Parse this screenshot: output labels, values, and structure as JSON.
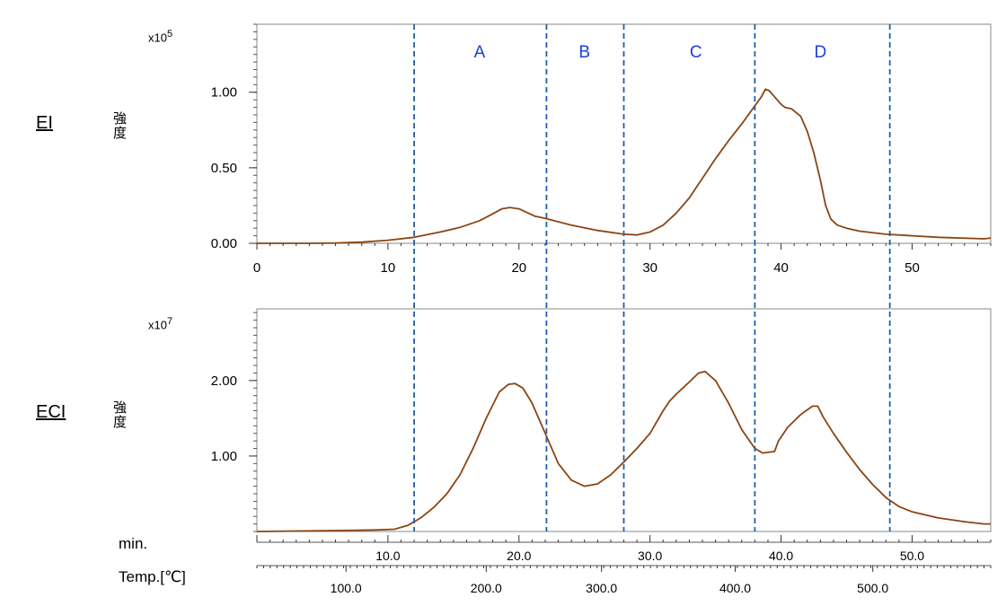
{
  "chart_data": [
    {
      "type": "line",
      "name_label": "EI",
      "ylabel": "強度",
      "scale_base": "x10",
      "scale_exp": "5",
      "xlim": [
        0,
        56
      ],
      "ylim": [
        0,
        1.45
      ],
      "yticks": [
        {
          "v": 0.0,
          "label": "0.00"
        },
        {
          "v": 0.5,
          "label": "0.50"
        },
        {
          "v": 1.0,
          "label": "1.00"
        }
      ],
      "xticks": [
        {
          "v": 0,
          "label": "0"
        },
        {
          "v": 10,
          "label": "10"
        },
        {
          "v": 20,
          "label": "20"
        },
        {
          "v": 30,
          "label": "30"
        },
        {
          "v": 40,
          "label": "40"
        },
        {
          "v": 50,
          "label": "50"
        }
      ],
      "color": "#8B4513",
      "points": [
        [
          0,
          0.0
        ],
        [
          4,
          0.0
        ],
        [
          6,
          0.002
        ],
        [
          8,
          0.008
        ],
        [
          10,
          0.02
        ],
        [
          12,
          0.04
        ],
        [
          14,
          0.075
        ],
        [
          15.5,
          0.105
        ],
        [
          17,
          0.15
        ],
        [
          18,
          0.195
        ],
        [
          18.7,
          0.228
        ],
        [
          19.3,
          0.237
        ],
        [
          20,
          0.228
        ],
        [
          20.7,
          0.2
        ],
        [
          21.2,
          0.18
        ],
        [
          22,
          0.165
        ],
        [
          24,
          0.12
        ],
        [
          26,
          0.085
        ],
        [
          28,
          0.06
        ],
        [
          29,
          0.055
        ],
        [
          30,
          0.075
        ],
        [
          31,
          0.12
        ],
        [
          32,
          0.2
        ],
        [
          33,
          0.3
        ],
        [
          34,
          0.43
        ],
        [
          35,
          0.56
        ],
        [
          36,
          0.68
        ],
        [
          37,
          0.79
        ],
        [
          38,
          0.91
        ],
        [
          38.5,
          0.97
        ],
        [
          38.8,
          1.02
        ],
        [
          39.1,
          1.01
        ],
        [
          39.5,
          0.97
        ],
        [
          40,
          0.92
        ],
        [
          40.3,
          0.9
        ],
        [
          40.8,
          0.89
        ],
        [
          41.5,
          0.84
        ],
        [
          42,
          0.74
        ],
        [
          42.5,
          0.6
        ],
        [
          43,
          0.42
        ],
        [
          43.4,
          0.25
        ],
        [
          43.8,
          0.16
        ],
        [
          44.3,
          0.12
        ],
        [
          45,
          0.1
        ],
        [
          46,
          0.08
        ],
        [
          48,
          0.06
        ],
        [
          52,
          0.04
        ],
        [
          55.5,
          0.03
        ],
        [
          56,
          0.035
        ]
      ]
    },
    {
      "type": "line",
      "name_label": "ECI",
      "ylabel": "強度",
      "scale_base": "x10",
      "scale_exp": "7",
      "xlim": [
        0,
        56
      ],
      "ylim": [
        0,
        2.95
      ],
      "yticks": [
        {
          "v": 1.0,
          "label": "1.00"
        },
        {
          "v": 2.0,
          "label": "2.00"
        }
      ],
      "color": "#8B4513",
      "points": [
        [
          0,
          0.0
        ],
        [
          5,
          0.01
        ],
        [
          9,
          0.02
        ],
        [
          10.5,
          0.03
        ],
        [
          11.5,
          0.08
        ],
        [
          12.5,
          0.18
        ],
        [
          13.5,
          0.32
        ],
        [
          14.5,
          0.5
        ],
        [
          15.5,
          0.75
        ],
        [
          16.5,
          1.1
        ],
        [
          17.5,
          1.5
        ],
        [
          18.5,
          1.85
        ],
        [
          19.2,
          1.95
        ],
        [
          19.7,
          1.96
        ],
        [
          20.3,
          1.9
        ],
        [
          21,
          1.7
        ],
        [
          22,
          1.3
        ],
        [
          23,
          0.9
        ],
        [
          24,
          0.68
        ],
        [
          25,
          0.6
        ],
        [
          26,
          0.63
        ],
        [
          27,
          0.75
        ],
        [
          28,
          0.92
        ],
        [
          29,
          1.1
        ],
        [
          30,
          1.3
        ],
        [
          31,
          1.6
        ],
        [
          31.5,
          1.73
        ],
        [
          32,
          1.82
        ],
        [
          33,
          1.98
        ],
        [
          33.7,
          2.1
        ],
        [
          34.2,
          2.12
        ],
        [
          35,
          2.0
        ],
        [
          36,
          1.7
        ],
        [
          37,
          1.35
        ],
        [
          38,
          1.1
        ],
        [
          38.6,
          1.04
        ],
        [
          39.5,
          1.06
        ],
        [
          39.8,
          1.2
        ],
        [
          40.5,
          1.38
        ],
        [
          41.5,
          1.55
        ],
        [
          42.4,
          1.66
        ],
        [
          42.8,
          1.66
        ],
        [
          43.2,
          1.52
        ],
        [
          44,
          1.3
        ],
        [
          45,
          1.05
        ],
        [
          46,
          0.82
        ],
        [
          47,
          0.62
        ],
        [
          48,
          0.45
        ],
        [
          49,
          0.33
        ],
        [
          50,
          0.26
        ],
        [
          52,
          0.18
        ],
        [
          54,
          0.13
        ],
        [
          55.5,
          0.1
        ],
        [
          56,
          0.1
        ]
      ]
    }
  ],
  "regions": [
    {
      "label": "A",
      "x": 17
    },
    {
      "label": "B",
      "x": 25
    },
    {
      "label": "C",
      "x": 33.5
    },
    {
      "label": "D",
      "x": 43
    }
  ],
  "region_boundaries": [
    12,
    22.1,
    28,
    38,
    48.3
  ],
  "region_color": "#1f5fa8",
  "region_label_color": "#1a3fd8",
  "bottom_axis": {
    "min_label": "min.",
    "temp_label": "Temp.[℃]",
    "min_ticks": [
      {
        "v": 10,
        "label": "10.0"
      },
      {
        "v": 20,
        "label": "20.0"
      },
      {
        "v": 30,
        "label": "30.0"
      },
      {
        "v": 40,
        "label": "40.0"
      },
      {
        "v": 50,
        "label": "50.0"
      }
    ],
    "temp_ticks": [
      {
        "v": 6.8,
        "label": "100.0"
      },
      {
        "v": 17.5,
        "label": "200.0"
      },
      {
        "v": 26.3,
        "label": "300.0"
      },
      {
        "v": 36.5,
        "label": "400.0"
      },
      {
        "v": 47,
        "label": "500.0"
      }
    ]
  }
}
